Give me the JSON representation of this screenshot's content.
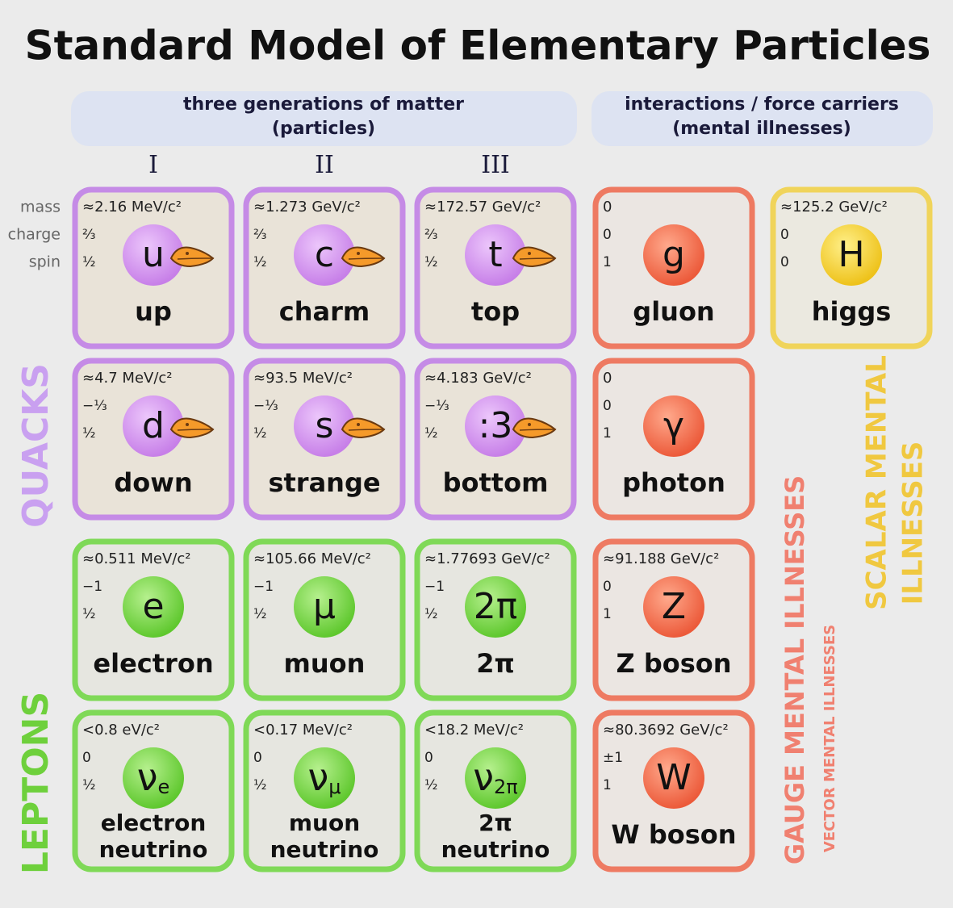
{
  "title": "Standard Model of Elementary Particles",
  "headers": {
    "matter": [
      "three generations of matter",
      "(particles)"
    ],
    "forces": [
      "interactions / force carriers",
      "(mental illnesses)"
    ]
  },
  "generations": [
    "I",
    "II",
    "III"
  ],
  "property_labels": [
    "mass",
    "charge",
    "spin"
  ],
  "group_labels": {
    "quarks": "QUACKS",
    "leptons": "LEPTONS",
    "gauge": "GAUGE MENTAL ILLNESSES",
    "vector": "VECTOR MENTAL ILLNESSES",
    "scalar": [
      "SCALAR MENTAL",
      "ILLNESSES"
    ]
  },
  "quarks": [
    {
      "mass": "≈2.16 MeV/c²",
      "charge": "⅔",
      "spin": "½",
      "symbol": "u",
      "name": [
        "up"
      ]
    },
    {
      "mass": "≈1.273 GeV/c²",
      "charge": "⅔",
      "spin": "½",
      "symbol": "c",
      "name": [
        "charm"
      ]
    },
    {
      "mass": "≈172.57 GeV/c²",
      "charge": "⅔",
      "spin": "½",
      "symbol": "t",
      "name": [
        "top"
      ]
    },
    {
      "mass": "≈4.7 MeV/c²",
      "charge": "−⅓",
      "spin": "½",
      "symbol": "d",
      "name": [
        "down"
      ]
    },
    {
      "mass": "≈93.5 MeV/c²",
      "charge": "−⅓",
      "spin": "½",
      "symbol": "s",
      "name": [
        "strange"
      ]
    },
    {
      "mass": "≈4.183 GeV/c²",
      "charge": "−⅓",
      "spin": "½",
      "symbol": ":3",
      "name": [
        "bottom"
      ]
    }
  ],
  "leptons": [
    {
      "mass": "≈0.511 MeV/c²",
      "charge": "−1",
      "spin": "½",
      "symbol": "e",
      "name": [
        "electron"
      ]
    },
    {
      "mass": "≈105.66 MeV/c²",
      "charge": "−1",
      "spin": "½",
      "symbol": "μ",
      "name": [
        "muon"
      ]
    },
    {
      "mass": "≈1.77693 GeV/c²",
      "charge": "−1",
      "spin": "½",
      "symbol": "2π",
      "name": [
        "2π"
      ]
    },
    {
      "mass": "<0.8 eV/c²",
      "charge": "0",
      "spin": "½",
      "symbol": "ν",
      "subscript": "e",
      "name": [
        "electron",
        "neutrino"
      ]
    },
    {
      "mass": "<0.17 MeV/c²",
      "charge": "0",
      "spin": "½",
      "symbol": "ν",
      "subscript": "μ",
      "name": [
        "muon",
        "neutrino"
      ]
    },
    {
      "mass": "<18.2 MeV/c²",
      "charge": "0",
      "spin": "½",
      "symbol": "ν",
      "subscript": "2π",
      "name": [
        "2π",
        "neutrino"
      ]
    }
  ],
  "gauge_bosons": [
    {
      "mass": "0",
      "charge": "0",
      "spin": "1",
      "symbol": "g",
      "name": [
        "gluon"
      ]
    },
    {
      "mass": "0",
      "charge": "0",
      "spin": "1",
      "symbol": "γ",
      "name": [
        "photon"
      ]
    },
    {
      "mass": "≈91.188 GeV/c²",
      "charge": "0",
      "spin": "1",
      "symbol": "Z",
      "name": [
        "Z boson"
      ]
    },
    {
      "mass": "≈80.3692 GeV/c²",
      "charge": "±1",
      "spin": "1",
      "symbol": "W",
      "name": [
        "W boson"
      ]
    }
  ],
  "scalar_bosons": [
    {
      "mass": "≈125.2 GeV/c²",
      "charge": "0",
      "spin": "0",
      "symbol": "H",
      "name": [
        "higgs"
      ]
    }
  ]
}
